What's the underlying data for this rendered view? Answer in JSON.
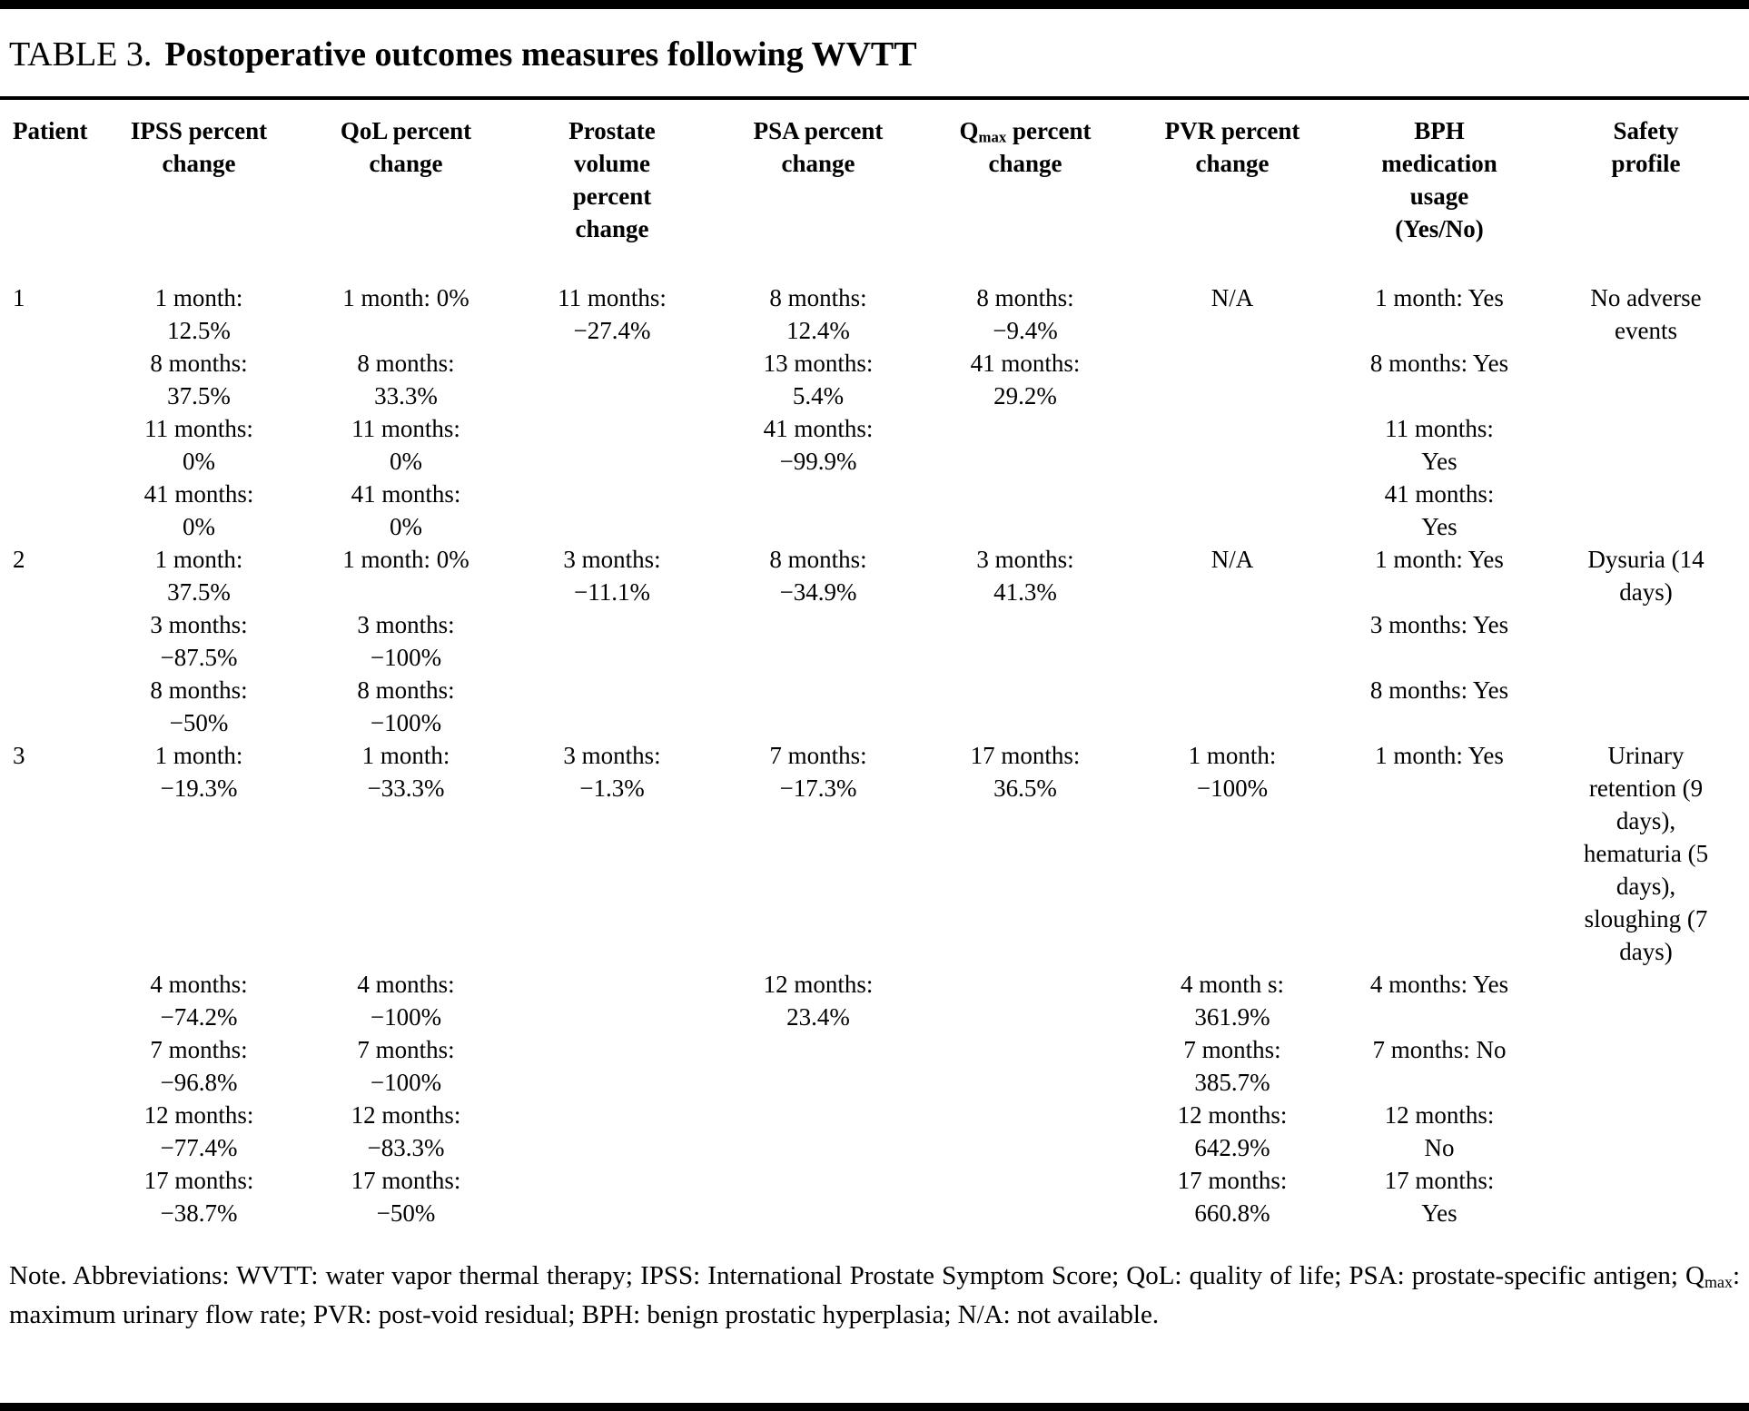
{
  "title": {
    "label": "TABLE 3.",
    "text": "Postoperative outcomes measures following WVTT"
  },
  "header": {
    "patient": "Patient",
    "ipss": "IPSS percent change",
    "qol": "QoL percent change",
    "prostate_volume": "Prostate volume percent change",
    "psa": "PSA percent change",
    "qmax": {
      "prefix": "Q",
      "sub": "max",
      "suffix": " percent change"
    },
    "pvr": "PVR percent change",
    "bph": "BPH medication usage (Yes/No)",
    "safety": "Safety profile"
  },
  "rows": [
    {
      "patient": "1",
      "ipss": [
        [
          "1 month:",
          "12.5%"
        ],
        [
          "8 months:",
          "37.5%"
        ],
        [
          "11 months:",
          "0%"
        ],
        [
          "41 months:",
          "0%"
        ]
      ],
      "qol": [
        [
          "1 month: 0%"
        ],
        [
          "8 months:",
          "33.3%"
        ],
        [
          "11 months:",
          "0%"
        ],
        [
          "41 months:",
          "0%"
        ]
      ],
      "prostate_volume": [
        [
          "11 months:",
          "−27.4%"
        ]
      ],
      "psa": [
        [
          "8 months:",
          "12.4%"
        ],
        [
          "13 months:",
          "5.4%"
        ],
        [
          "41 months:",
          "−99.9%"
        ]
      ],
      "qmax": [
        [
          "8 months:",
          "−9.4%"
        ],
        [
          "41 months:",
          "29.2%"
        ]
      ],
      "pvr": [
        [
          "N/A"
        ]
      ],
      "bph": [
        [
          "1 month: Yes"
        ],
        [
          "8 months: Yes"
        ],
        [
          "11 months:",
          "Yes"
        ],
        [
          "41 months:",
          "Yes"
        ]
      ],
      "safety": [
        [
          "No adverse",
          "events"
        ]
      ]
    },
    {
      "patient": "2",
      "ipss": [
        [
          "1 month:",
          "37.5%"
        ],
        [
          "3 months:",
          "−87.5%"
        ],
        [
          "8 months:",
          "−50%"
        ]
      ],
      "qol": [
        [
          "1 month: 0%"
        ],
        [
          "3 months:",
          "−100%"
        ],
        [
          "8 months:",
          "−100%"
        ]
      ],
      "prostate_volume": [
        [
          "3 months:",
          "−11.1%"
        ]
      ],
      "psa": [
        [
          "8 months:",
          "−34.9%"
        ]
      ],
      "qmax": [
        [
          "3 months:",
          "41.3%"
        ]
      ],
      "pvr": [
        [
          "N/A"
        ]
      ],
      "bph": [
        [
          "1 month: Yes"
        ],
        [
          "3 months: Yes"
        ],
        [
          "8 months: Yes"
        ]
      ],
      "safety": [
        [
          "Dysuria (14",
          "days)"
        ]
      ]
    },
    {
      "patient": "3",
      "ipss": [
        [
          "1 month:",
          "−19.3%"
        ]
      ],
      "qol": [
        [
          "1 month:",
          "−33.3%"
        ]
      ],
      "prostate_volume": [
        [
          "3 months:",
          "−1.3%"
        ]
      ],
      "psa": [
        [
          "7 months:",
          "−17.3%"
        ]
      ],
      "qmax": [
        [
          "17 months:",
          "36.5%"
        ]
      ],
      "pvr": [
        [
          "1 month:",
          "−100%"
        ]
      ],
      "bph": [
        [
          "1 month: Yes"
        ]
      ],
      "safety": [
        [
          "Urinary",
          "retention (9",
          "days),",
          "hematuria (5",
          "days),",
          "sloughing (7",
          "days)"
        ]
      ]
    },
    {
      "patient": "",
      "ipss": [
        [
          "4 months:",
          "−74.2%"
        ],
        [
          "7 months:",
          "−96.8%"
        ],
        [
          "12 months:",
          "−77.4%"
        ],
        [
          "17 months:",
          "−38.7%"
        ]
      ],
      "qol": [
        [
          "4 months:",
          "−100%"
        ],
        [
          "7 months:",
          "−100%"
        ],
        [
          "12 months:",
          "−83.3%"
        ],
        [
          "17 months:",
          "−50%"
        ]
      ],
      "prostate_volume": [],
      "psa": [
        [
          "12 months:",
          "23.4%"
        ]
      ],
      "qmax": [],
      "pvr": [
        [
          "4 month s:",
          "361.9%"
        ],
        [
          "7 months:",
          "385.7%"
        ],
        [
          "12 months:",
          "642.9%"
        ],
        [
          "17 months:",
          "660.8%"
        ]
      ],
      "bph": [
        [
          "4 months: Yes"
        ],
        [
          "7 months: No"
        ],
        [
          "12 months:",
          "No"
        ],
        [
          "17 months:",
          "Yes"
        ]
      ],
      "safety": []
    }
  ],
  "note": {
    "before_sub": "Note. Abbreviations: WVTT: water vapor thermal therapy; IPSS: International Prostate Symptom Score; QoL: quality of life; PSA: prostate-specific antigen; Q",
    "sub": "max",
    "after_sub": ": maximum urinary flow rate; PVR: post-void residual; BPH: benign prostatic hyperplasia; N/A: not available."
  }
}
